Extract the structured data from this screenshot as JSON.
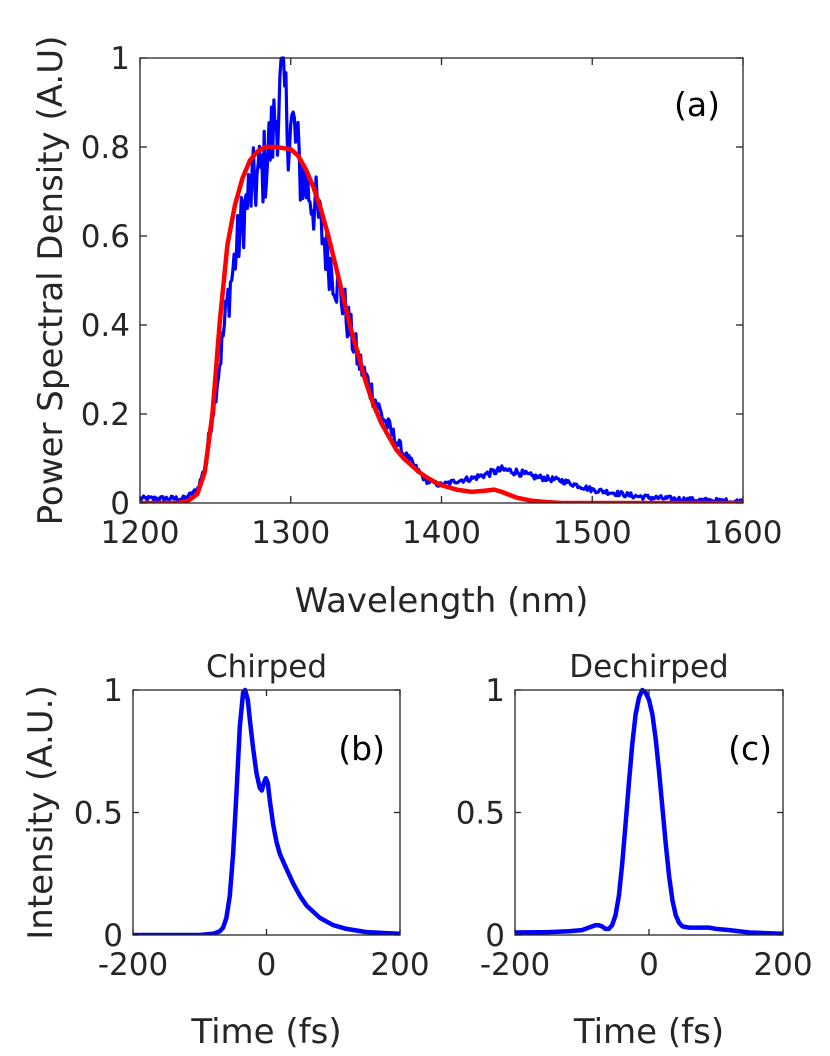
{
  "chart_data": [
    {
      "id": "a",
      "type": "line",
      "panel_label": "(a)",
      "title": "",
      "xlabel": "Wavelength (nm)",
      "ylabel": "Power Spectral Density (A.U)",
      "xlim": [
        1200,
        1600
      ],
      "ylim": [
        0,
        1
      ],
      "xticks": [
        1200,
        1300,
        1400,
        1500,
        1600
      ],
      "xtick_labels": [
        "1200",
        "1300",
        "1400",
        "1500",
        "1600"
      ],
      "yticks": [
        0,
        0.2,
        0.4,
        0.6,
        0.8,
        1
      ],
      "ytick_labels": [
        "0",
        "0.2",
        "0.4",
        "0.6",
        "0.8",
        "1"
      ],
      "series": [
        {
          "name": "measured spectrum",
          "color": "#0000ff",
          "noisy": true,
          "x": [
            1200,
            1230,
            1238,
            1243,
            1248,
            1253,
            1258,
            1263,
            1268,
            1273,
            1278,
            1283,
            1288,
            1292,
            1295,
            1298,
            1302,
            1306,
            1310,
            1315,
            1320,
            1325,
            1330,
            1335,
            1340,
            1345,
            1350,
            1355,
            1360,
            1365,
            1370,
            1375,
            1380,
            1385,
            1390,
            1395,
            1400,
            1405,
            1410,
            1420,
            1430,
            1440,
            1450,
            1460,
            1470,
            1480,
            1490,
            1500,
            1510,
            1520,
            1530,
            1540,
            1550,
            1560,
            1570,
            1580,
            1590,
            1600
          ],
          "y": [
            0.01,
            0.01,
            0.03,
            0.08,
            0.2,
            0.32,
            0.45,
            0.55,
            0.64,
            0.7,
            0.73,
            0.76,
            0.83,
            0.9,
            0.95,
            0.85,
            0.84,
            0.75,
            0.72,
            0.68,
            0.62,
            0.55,
            0.5,
            0.45,
            0.38,
            0.32,
            0.28,
            0.24,
            0.2,
            0.17,
            0.14,
            0.11,
            0.09,
            0.07,
            0.05,
            0.045,
            0.04,
            0.045,
            0.05,
            0.055,
            0.065,
            0.075,
            0.07,
            0.06,
            0.055,
            0.05,
            0.04,
            0.03,
            0.025,
            0.02,
            0.015,
            0.012,
            0.01,
            0.008,
            0.006,
            0.005,
            0.004,
            0.003
          ]
        },
        {
          "name": "fit",
          "color": "#ff0000",
          "noisy": false,
          "x": [
            1200,
            1225,
            1232,
            1238,
            1243,
            1248,
            1253,
            1258,
            1263,
            1268,
            1273,
            1278,
            1283,
            1290,
            1300,
            1305,
            1310,
            1315,
            1320,
            1325,
            1330,
            1335,
            1340,
            1345,
            1350,
            1355,
            1360,
            1365,
            1370,
            1375,
            1380,
            1385,
            1390,
            1395,
            1400,
            1410,
            1420,
            1430,
            1435,
            1440,
            1450,
            1460,
            1470,
            1480,
            1500,
            1520,
            1550,
            1600
          ],
          "y": [
            0,
            0,
            0.005,
            0.02,
            0.07,
            0.2,
            0.41,
            0.58,
            0.67,
            0.73,
            0.77,
            0.79,
            0.8,
            0.8,
            0.795,
            0.78,
            0.75,
            0.71,
            0.66,
            0.6,
            0.53,
            0.46,
            0.39,
            0.33,
            0.27,
            0.22,
            0.18,
            0.15,
            0.12,
            0.1,
            0.085,
            0.07,
            0.058,
            0.048,
            0.04,
            0.03,
            0.025,
            0.028,
            0.03,
            0.025,
            0.012,
            0.005,
            0.002,
            0,
            0,
            0,
            0,
            0
          ]
        }
      ]
    },
    {
      "id": "b",
      "type": "line",
      "panel_label": "(b)",
      "title": "Chirped",
      "xlabel": "Time (fs)",
      "ylabel": "Intensity (A.U.)",
      "xlim": [
        -200,
        200
      ],
      "ylim": [
        0,
        1
      ],
      "xticks": [
        -200,
        0,
        200
      ],
      "xtick_labels": [
        "-200",
        "0",
        "200"
      ],
      "yticks": [
        0,
        0.5,
        1
      ],
      "ytick_labels": [
        "0",
        "0.5",
        "1"
      ],
      "series": [
        {
          "name": "chirped pulse",
          "color": "#0000ff",
          "noisy": false,
          "x": [
            -200,
            -100,
            -80,
            -70,
            -65,
            -60,
            -55,
            -50,
            -45,
            -40,
            -35,
            -32,
            -28,
            -25,
            -20,
            -15,
            -10,
            -7,
            -4,
            -1,
            2,
            5,
            10,
            15,
            20,
            30,
            40,
            50,
            60,
            80,
            100,
            120,
            150,
            200
          ],
          "y": [
            0,
            0,
            0.005,
            0.015,
            0.03,
            0.07,
            0.16,
            0.33,
            0.58,
            0.85,
            0.99,
            1.0,
            0.96,
            0.88,
            0.76,
            0.66,
            0.6,
            0.59,
            0.62,
            0.64,
            0.62,
            0.55,
            0.45,
            0.38,
            0.33,
            0.27,
            0.21,
            0.16,
            0.12,
            0.07,
            0.04,
            0.025,
            0.012,
            0.005
          ]
        }
      ]
    },
    {
      "id": "c",
      "type": "line",
      "panel_label": "(c)",
      "title": "Dechirped",
      "xlabel": "Time (fs)",
      "ylabel": "",
      "xlim": [
        -200,
        200
      ],
      "ylim": [
        0,
        1
      ],
      "xticks": [
        -200,
        0,
        200
      ],
      "xtick_labels": [
        "-200",
        "0",
        "200"
      ],
      "yticks": [
        0,
        0.5,
        1
      ],
      "ytick_labels": [
        "0",
        "0.5",
        "1"
      ],
      "series": [
        {
          "name": "dechirped pulse",
          "color": "#0000ff",
          "noisy": false,
          "x": [
            -200,
            -150,
            -120,
            -100,
            -90,
            -80,
            -75,
            -70,
            -65,
            -60,
            -55,
            -50,
            -45,
            -40,
            -35,
            -30,
            -25,
            -20,
            -15,
            -10,
            -5,
            0,
            5,
            10,
            15,
            20,
            25,
            30,
            35,
            40,
            45,
            50,
            60,
            70,
            80,
            90,
            100,
            120,
            150,
            200
          ],
          "y": [
            0.01,
            0.012,
            0.015,
            0.02,
            0.03,
            0.04,
            0.04,
            0.035,
            0.025,
            0.025,
            0.04,
            0.08,
            0.16,
            0.29,
            0.45,
            0.62,
            0.78,
            0.9,
            0.97,
            1.0,
            0.99,
            0.96,
            0.9,
            0.8,
            0.67,
            0.52,
            0.37,
            0.24,
            0.14,
            0.08,
            0.05,
            0.035,
            0.03,
            0.03,
            0.03,
            0.03,
            0.025,
            0.02,
            0.01,
            0.005
          ]
        }
      ]
    }
  ]
}
